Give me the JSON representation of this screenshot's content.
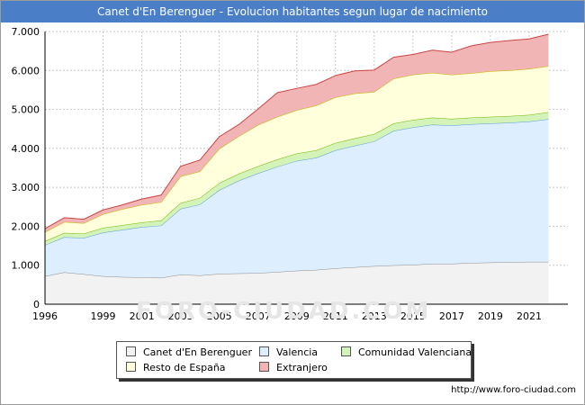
{
  "header": {
    "title": "Canet d'En Berenguer - Evolucion habitantes segun lugar de nacimiento"
  },
  "footer": {
    "url": "http://www.foro-ciudad.com",
    "watermark": "FORO-CIUDAD.COM"
  },
  "chart_data": {
    "type": "area",
    "stacked": true,
    "title": "Canet d'En Berenguer - Evolucion habitantes segun lugar de nacimiento",
    "xlabel": "",
    "ylabel": "",
    "x": [
      1996,
      1997,
      1998,
      1999,
      2000,
      2001,
      2002,
      2003,
      2004,
      2005,
      2006,
      2007,
      2008,
      2009,
      2010,
      2011,
      2012,
      2013,
      2014,
      2015,
      2016,
      2017,
      2018,
      2019,
      2020,
      2021,
      2022
    ],
    "xlim": [
      1996,
      2023
    ],
    "x_ticks": [
      "1996",
      "1999",
      "2001",
      "2003",
      "2005",
      "2007",
      "2009",
      "2011",
      "2013",
      "2015",
      "2017",
      "2019",
      "2021"
    ],
    "ylim": [
      0,
      7000
    ],
    "y_ticks": [
      "0",
      "1.000",
      "2.000",
      "3.000",
      "4.000",
      "5.000",
      "6.000",
      "7.000"
    ],
    "grid": true,
    "legend_position": "bottom",
    "series": [
      {
        "name": "Canet d'En Berenguer",
        "color": "#f2f2f2",
        "line": "#8c8c8c",
        "values": [
          720,
          820,
          770,
          720,
          700,
          690,
          680,
          760,
          740,
          780,
          790,
          800,
          830,
          860,
          880,
          920,
          950,
          980,
          1000,
          1010,
          1040,
          1040,
          1060,
          1070,
          1080,
          1090,
          1090
        ]
      },
      {
        "name": "Valencia",
        "color": "#ddeeff",
        "line": "#5b9bd5",
        "values": [
          800,
          900,
          930,
          1120,
          1210,
          1290,
          1340,
          1690,
          1820,
          2150,
          2380,
          2560,
          2700,
          2820,
          2880,
          3030,
          3120,
          3200,
          3450,
          3530,
          3570,
          3550,
          3560,
          3570,
          3580,
          3600,
          3660
        ]
      },
      {
        "name": "Comunidad Valenciana",
        "color": "#d4f3b8",
        "line": "#6fb800",
        "values": [
          100,
          110,
          110,
          120,
          120,
          120,
          130,
          150,
          170,
          180,
          180,
          180,
          190,
          190,
          190,
          190,
          190,
          190,
          190,
          190,
          180,
          170,
          170,
          170,
          170,
          170,
          180
        ]
      },
      {
        "name": "Resto de España",
        "color": "#ffffdc",
        "line": "#c8b400",
        "values": [
          230,
          280,
          270,
          350,
          410,
          450,
          470,
          680,
          680,
          880,
          960,
          1060,
          1090,
          1110,
          1150,
          1170,
          1150,
          1080,
          1150,
          1160,
          1150,
          1130,
          1140,
          1170,
          1170,
          1180,
          1180
        ]
      },
      {
        "name": "Extranjero",
        "color": "#f1b5b5",
        "line": "#cc4444",
        "values": [
          90,
          110,
          100,
          110,
          110,
          150,
          180,
          260,
          290,
          310,
          300,
          410,
          620,
          560,
          540,
          560,
          580,
          560,
          550,
          520,
          580,
          580,
          700,
          740,
          770,
          770,
          820
        ]
      }
    ]
  }
}
